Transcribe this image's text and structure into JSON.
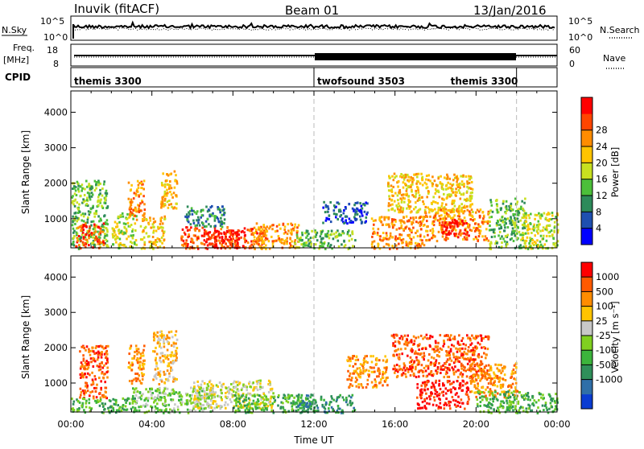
{
  "header": {
    "station": "Inuvik (fitACF)",
    "beam": "Beam 01",
    "date": "13/Jan/2016"
  },
  "panels": {
    "nsky": {
      "left_label": "N.Sky",
      "right_label": "N.Search",
      "left_ticks": [
        "10^5",
        "10^0"
      ],
      "right_ticks": [
        "10^5",
        "10^0"
      ]
    },
    "freq": {
      "left_label_1": "Freq.",
      "left_label_2": "[MHz]",
      "right_label": "Nave",
      "left_ticks": [
        "18",
        "8"
      ],
      "right_ticks": [
        "60",
        "0"
      ]
    },
    "cpid": {
      "label": "CPID",
      "segments": [
        {
          "name": "themis 3300",
          "start_h": 0,
          "end_h": 12
        },
        {
          "name": "twofsound 3503",
          "start_h": 12,
          "end_h": 22
        },
        {
          "name": "themis 3300",
          "start_h": 22,
          "end_h": 24
        }
      ]
    }
  },
  "chart_data": [
    {
      "type": "heatmap",
      "name": "power",
      "ylabel": "Slant Range [km]",
      "xlim": [
        0,
        24
      ],
      "ylim": [
        180,
        4600
      ],
      "yticks": [
        1000,
        2000,
        3000,
        4000
      ],
      "colorbar": {
        "label": "Power [dB]",
        "ticks": [
          "4",
          "8",
          "12",
          "16",
          "20",
          "24",
          "28"
        ],
        "colors": [
          "#0000ff",
          "#1e4fb0",
          "#2d8a5a",
          "#4cbf3a",
          "#c8e020",
          "#ffc400",
          "#ff8c00",
          "#ff4500",
          "#ff0000"
        ]
      },
      "regions": [
        {
          "t": [
            0.0,
            1.8
          ],
          "r": [
            180,
            2100
          ],
          "level": 3
        },
        {
          "t": [
            0.2,
            1.6
          ],
          "r": [
            200,
            900
          ],
          "level": 7
        },
        {
          "t": [
            2.0,
            3.2
          ],
          "r": [
            180,
            1200
          ],
          "level": 4
        },
        {
          "t": [
            2.8,
            3.6
          ],
          "r": [
            1000,
            2100
          ],
          "level": 6
        },
        {
          "t": [
            3.4,
            4.6
          ],
          "r": [
            180,
            1100
          ],
          "level": 5
        },
        {
          "t": [
            4.4,
            5.2
          ],
          "r": [
            1300,
            2400
          ],
          "level": 5
        },
        {
          "t": [
            5.4,
            9.6
          ],
          "r": [
            180,
            800
          ],
          "level": 7
        },
        {
          "t": [
            6.6,
            8.2
          ],
          "r": [
            180,
            700
          ],
          "level": 8
        },
        {
          "t": [
            5.6,
            7.6
          ],
          "r": [
            800,
            1400
          ],
          "level": 2
        },
        {
          "t": [
            9.0,
            11.2
          ],
          "r": [
            180,
            900
          ],
          "level": 6
        },
        {
          "t": [
            11.0,
            14.0
          ],
          "r": [
            180,
            700
          ],
          "level": 3
        },
        {
          "t": [
            12.4,
            14.6
          ],
          "r": [
            900,
            1500
          ],
          "level": 1
        },
        {
          "t": [
            14.8,
            17.4
          ],
          "r": [
            180,
            1100
          ],
          "level": 6
        },
        {
          "t": [
            15.6,
            19.8
          ],
          "r": [
            1200,
            2300
          ],
          "level": 5
        },
        {
          "t": [
            17.4,
            20.6
          ],
          "r": [
            400,
            1300
          ],
          "level": 6
        },
        {
          "t": [
            18.2,
            19.6
          ],
          "r": [
            500,
            1000
          ],
          "level": 8
        },
        {
          "t": [
            20.6,
            22.4
          ],
          "r": [
            180,
            1600
          ],
          "level": 3
        },
        {
          "t": [
            22.2,
            24.0
          ],
          "r": [
            180,
            1200
          ],
          "level": 4
        }
      ]
    },
    {
      "type": "heatmap",
      "name": "velocity",
      "xlabel": "Time UT",
      "ylabel": "Slant Range [km]",
      "xlim": [
        0,
        24
      ],
      "ylim": [
        180,
        4600
      ],
      "yticks": [
        1000,
        2000,
        3000,
        4000
      ],
      "xticks": [
        "00:00",
        "04:00",
        "08:00",
        "12:00",
        "16:00",
        "20:00",
        "00:00"
      ],
      "colorbar": {
        "label": "Velocity [m s⁻¹]",
        "ticks": [
          "1000",
          "500",
          "100",
          "25",
          "-25",
          "-100",
          "-500",
          "-1000"
        ],
        "colors": [
          "#0a3cd2",
          "#2f6fa8",
          "#2f8f5a",
          "#3cb43c",
          "#80d020",
          "#c8c8c8",
          "#ffc400",
          "#ff8c00",
          "#ff5a00",
          "#ff0000"
        ]
      },
      "regions": [
        {
          "t": [
            0.4,
            1.8
          ],
          "r": [
            600,
            2100
          ],
          "level": 8
        },
        {
          "t": [
            0.0,
            3.2
          ],
          "r": [
            180,
            600
          ],
          "level": 3
        },
        {
          "t": [
            2.8,
            3.6
          ],
          "r": [
            1000,
            2100
          ],
          "level": 7
        },
        {
          "t": [
            4.0,
            5.2
          ],
          "r": [
            1000,
            2500
          ],
          "level": 6
        },
        {
          "t": [
            3.0,
            7.0
          ],
          "r": [
            180,
            900
          ],
          "level": 4
        },
        {
          "t": [
            6.0,
            10.0
          ],
          "r": [
            300,
            1100
          ],
          "level": 5
        },
        {
          "t": [
            8.0,
            12.0
          ],
          "r": [
            180,
            700
          ],
          "level": 3
        },
        {
          "t": [
            11.0,
            14.0
          ],
          "r": [
            180,
            700
          ],
          "level": 2
        },
        {
          "t": [
            13.6,
            15.6
          ],
          "r": [
            900,
            1800
          ],
          "level": 7
        },
        {
          "t": [
            15.8,
            20.6
          ],
          "r": [
            1200,
            2400
          ],
          "level": 8
        },
        {
          "t": [
            17.0,
            19.6
          ],
          "r": [
            300,
            1100
          ],
          "level": 9
        },
        {
          "t": [
            19.6,
            22.0
          ],
          "r": [
            600,
            1600
          ],
          "level": 7
        },
        {
          "t": [
            20.0,
            24.0
          ],
          "r": [
            180,
            800
          ],
          "level": 3
        }
      ]
    }
  ]
}
